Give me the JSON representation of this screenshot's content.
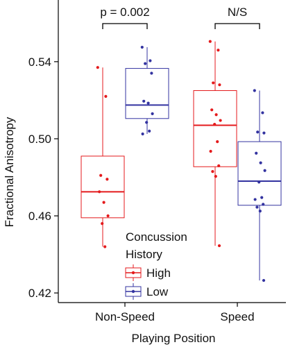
{
  "chart_data": {
    "type": "box",
    "title": "",
    "xlabel": "Playing Position",
    "ylabel": "Fractional Anisotropy",
    "ylim": [
      0.415,
      0.572
    ],
    "yticks": [
      0.42,
      0.46,
      0.5,
      0.54
    ],
    "ytick_labels": [
      "0.42",
      "0.46",
      "0.50",
      "0.54"
    ],
    "categories": [
      "Non-Speed",
      "Speed"
    ],
    "legend": {
      "title_lines": [
        "Concussion",
        "History"
      ],
      "placement": "bottom-center",
      "entries": [
        "High",
        "Low"
      ]
    },
    "series": [
      {
        "name": "High",
        "color": "#e41a1c",
        "boxes": [
          {
            "category": "Non-Speed",
            "min": 0.444,
            "q1": 0.459,
            "median": 0.4725,
            "q3": 0.491,
            "max": 0.537,
            "points": [
              0.537,
              0.522,
              0.481,
              0.479,
              0.4725,
              0.467,
              0.46,
              0.456,
              0.444
            ]
          },
          {
            "category": "Speed",
            "min": 0.4445,
            "q1": 0.4855,
            "median": 0.507,
            "q3": 0.525,
            "max": 0.5505,
            "points": [
              0.5505,
              0.546,
              0.529,
              0.528,
              0.515,
              0.5125,
              0.5095,
              0.5075,
              0.4985,
              0.4935,
              0.486,
              0.483,
              0.4805,
              0.4445
            ]
          }
        ]
      },
      {
        "name": "Low",
        "color": "#3333a0",
        "boxes": [
          {
            "category": "Non-Speed",
            "min": 0.5025,
            "q1": 0.5105,
            "median": 0.5175,
            "q3": 0.5365,
            "max": 0.5475,
            "points": [
              0.5475,
              0.5405,
              0.539,
              0.534,
              0.5195,
              0.5185,
              0.513,
              0.5085,
              0.504,
              0.5025
            ]
          },
          {
            "category": "Speed",
            "min": 0.4265,
            "q1": 0.4655,
            "median": 0.478,
            "q3": 0.4985,
            "max": 0.525,
            "points": [
              0.525,
              0.5135,
              0.5035,
              0.503,
              0.4925,
              0.4875,
              0.4835,
              0.4775,
              0.4695,
              0.4685,
              0.466,
              0.4645,
              0.4625,
              0.4265
            ]
          }
        ]
      }
    ],
    "annotations": [
      {
        "category": "Non-Speed",
        "text": "p = 0.002"
      },
      {
        "category": "Speed",
        "text": "N/S"
      }
    ]
  }
}
